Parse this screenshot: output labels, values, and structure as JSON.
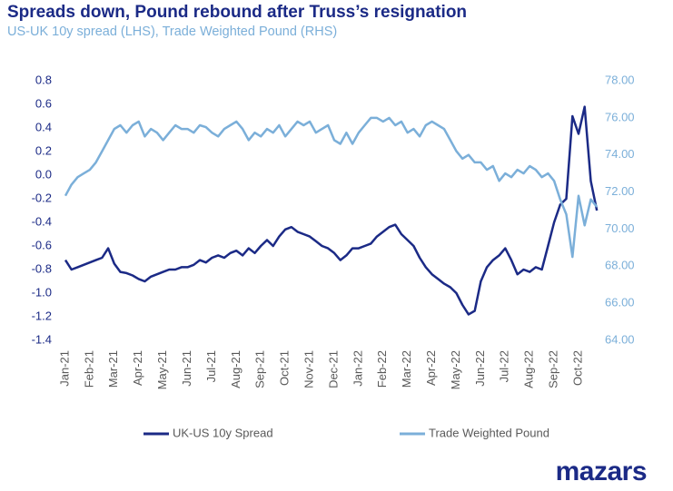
{
  "chart_data": {
    "type": "line",
    "title": "Spreads down, Pound rebound after Truss’s resignation",
    "subtitle": "US-UK 10y spread (LHS), Trade Weighted Pound (RHS)",
    "logo": "mazars",
    "categories": [
      "Jan-21",
      null,
      null,
      null,
      "Feb-21",
      null,
      null,
      null,
      "Mar-21",
      null,
      null,
      null,
      "Apr-21",
      null,
      null,
      null,
      "May-21",
      null,
      null,
      null,
      "Jun-21",
      null,
      null,
      null,
      "Jul-21",
      null,
      null,
      null,
      "Aug-21",
      null,
      null,
      null,
      "Sep-21",
      null,
      null,
      null,
      "Oct-21",
      null,
      null,
      null,
      "Nov-21",
      null,
      null,
      null,
      "Dec-21",
      null,
      null,
      null,
      "Jan-22",
      null,
      null,
      null,
      "Feb-22",
      null,
      null,
      null,
      "Mar-22",
      null,
      null,
      null,
      "Apr-22",
      null,
      null,
      null,
      "May-22",
      null,
      null,
      null,
      "Jun-22",
      null,
      null,
      null,
      "Jul-22",
      null,
      null,
      null,
      "Aug-22",
      null,
      null,
      null,
      "Sep-22",
      null,
      null,
      null,
      "Oct-22",
      null,
      null,
      null
    ],
    "series": [
      {
        "name": "UK-US 10y Spread",
        "color": "#1b2a86",
        "axis": "y",
        "values": [
          -0.72,
          -0.8,
          -0.78,
          -0.76,
          -0.74,
          -0.72,
          -0.7,
          -0.62,
          -0.75,
          -0.82,
          -0.83,
          -0.85,
          -0.88,
          -0.9,
          -0.86,
          -0.84,
          -0.82,
          -0.8,
          -0.8,
          -0.78,
          -0.78,
          -0.76,
          -0.72,
          -0.74,
          -0.7,
          -0.68,
          -0.7,
          -0.66,
          -0.64,
          -0.68,
          -0.62,
          -0.66,
          -0.6,
          -0.55,
          -0.6,
          -0.52,
          -0.46,
          -0.44,
          -0.48,
          -0.5,
          -0.52,
          -0.56,
          -0.6,
          -0.62,
          -0.66,
          -0.72,
          -0.68,
          -0.62,
          -0.62,
          -0.6,
          -0.58,
          -0.52,
          -0.48,
          -0.44,
          -0.42,
          -0.5,
          -0.55,
          -0.6,
          -0.7,
          -0.78,
          -0.84,
          -0.88,
          -0.92,
          -0.95,
          -1.0,
          -1.1,
          -1.18,
          -1.15,
          -0.9,
          -0.78,
          -0.72,
          -0.68,
          -0.62,
          -0.72,
          -0.84,
          -0.8,
          -0.82,
          -0.78,
          -0.8,
          -0.6,
          -0.4,
          -0.25,
          -0.2,
          0.5,
          0.35,
          0.58,
          -0.05,
          -0.3
        ]
      },
      {
        "name": "Trade Weighted Pound",
        "color": "#7bafd9",
        "axis": "y2",
        "values": [
          71.8,
          72.4,
          72.8,
          73.0,
          73.2,
          73.6,
          74.2,
          74.8,
          75.4,
          75.6,
          75.2,
          75.6,
          75.8,
          75.0,
          75.4,
          75.2,
          74.8,
          75.2,
          75.6,
          75.4,
          75.4,
          75.2,
          75.6,
          75.5,
          75.2,
          75.0,
          75.4,
          75.6,
          75.8,
          75.4,
          74.8,
          75.2,
          75.0,
          75.4,
          75.2,
          75.6,
          75.0,
          75.4,
          75.8,
          75.6,
          75.8,
          75.2,
          75.4,
          75.6,
          74.8,
          74.6,
          75.2,
          74.6,
          75.2,
          75.6,
          76.0,
          76.0,
          75.8,
          76.0,
          75.6,
          75.8,
          75.2,
          75.4,
          75.0,
          75.6,
          75.8,
          75.6,
          75.4,
          74.8,
          74.2,
          73.8,
          74.0,
          73.6,
          73.6,
          73.2,
          73.4,
          72.6,
          73.0,
          72.8,
          73.2,
          73.0,
          73.4,
          73.2,
          72.8,
          73.0,
          72.6,
          71.6,
          70.8,
          68.5,
          71.8,
          70.2,
          71.6,
          71.2
        ]
      }
    ],
    "ylim": [
      -1.4,
      0.8
    ],
    "yticks": [
      {
        "value": -1.4,
        "label": "-1.4"
      },
      -1.2,
      {
        "value": -1.0,
        "label": "-1.0"
      },
      -0.8,
      -0.6,
      -0.4,
      -0.2,
      {
        "value": 0,
        "label": "0.0"
      },
      0.2,
      0.4,
      0.6,
      0.8
    ],
    "y2lim": [
      64,
      78
    ],
    "y2ticks": [
      {
        "value": 64,
        "label": "64.00"
      },
      {
        "value": 66,
        "label": "66.00"
      },
      {
        "value": 68,
        "label": "68.00"
      },
      {
        "value": 70,
        "label": "70.00"
      },
      {
        "value": 72,
        "label": "72.00"
      },
      {
        "value": 74,
        "label": "74.00"
      },
      {
        "value": 76,
        "label": "76.00"
      },
      {
        "value": 78,
        "label": "78.00"
      }
    ],
    "legend": "bottom"
  }
}
